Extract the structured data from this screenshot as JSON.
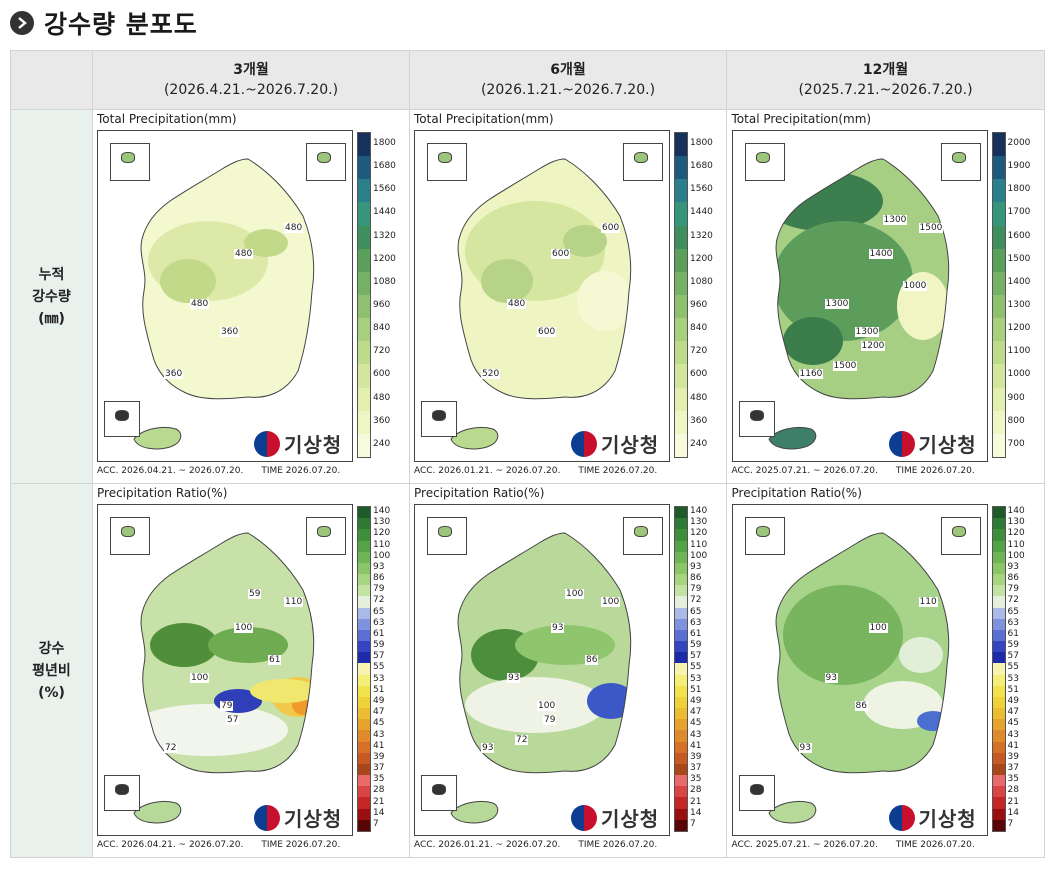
{
  "page": {
    "title": "강수량 분포도",
    "title_icon": "chevron-right-icon"
  },
  "columns": [
    {
      "label": "3개월",
      "range": "(2026.4.21.~2026.7.20.)"
    },
    {
      "label": "6개월",
      "range": "(2026.1.21.~2026.7.20.)"
    },
    {
      "label": "12개월",
      "range": "(2025.7.21.~2026.7.20.)"
    }
  ],
  "rows": [
    {
      "label_lines": [
        "누적",
        "강수량",
        "(㎜)"
      ]
    },
    {
      "label_lines": [
        "강수",
        "평년비",
        "(%)"
      ]
    }
  ],
  "logo_text": "기상청",
  "accumulation": {
    "panel_title": "Total Precipitation(mm)",
    "panels": [
      {
        "scale": [
          "1800",
          "1680",
          "1560",
          "1440",
          "1320",
          "1200",
          "1080",
          "960",
          "840",
          "720",
          "600",
          "480",
          "360",
          "240"
        ],
        "labels": [
          "480",
          "480",
          "480",
          "360",
          "360"
        ],
        "acc": "ACC. 2026.04.21. ~ 2026.07.20.",
        "time": "TIME 2026.07.20."
      },
      {
        "scale": [
          "1800",
          "1680",
          "1560",
          "1440",
          "1320",
          "1200",
          "1080",
          "960",
          "840",
          "720",
          "600",
          "480",
          "360",
          "240"
        ],
        "labels": [
          "600",
          "600",
          "480",
          "600",
          "520"
        ],
        "acc": "ACC. 2026.01.21. ~ 2026.07.20.",
        "time": "TIME 2026.07.20."
      },
      {
        "scale": [
          "2000",
          "1900",
          "1800",
          "1700",
          "1600",
          "1500",
          "1400",
          "1300",
          "1200",
          "1100",
          "1000",
          "900",
          "800",
          "700"
        ],
        "labels": [
          "1500",
          "1400",
          "1300",
          "1300",
          "1160",
          "1000",
          "1300",
          "1200",
          "1500"
        ],
        "acc": "ACC. 2025.07.21. ~ 2026.07.20.",
        "time": "TIME 2026.07.20."
      }
    ],
    "scale_colors": [
      "#16325c",
      "#1e5a7e",
      "#2a7f8a",
      "#36967b",
      "#3f8f5e",
      "#5a9f5a",
      "#74b065",
      "#8fc070",
      "#a8cf7d",
      "#bedb8c",
      "#d2e69d",
      "#e2efae",
      "#eef6c4",
      "#f7fadb"
    ]
  },
  "ratio": {
    "panel_title": "Precipitation Ratio(%)",
    "scale": [
      "140",
      "130",
      "120",
      "110",
      "100",
      "93",
      "86",
      "79",
      "72",
      "65",
      "63",
      "61",
      "59",
      "57",
      "55",
      "53",
      "51",
      "49",
      "47",
      "45",
      "43",
      "41",
      "39",
      "37",
      "35",
      "28",
      "21",
      "14",
      "7"
    ],
    "scale_colors": [
      "#1f5a2a",
      "#2e7a34",
      "#3e8f3c",
      "#55a347",
      "#6fb556",
      "#8ac668",
      "#a6d480",
      "#c4e2a4",
      "#e4f0dc",
      "#a9b9e8",
      "#7f92dd",
      "#5a6fd1",
      "#3545c1",
      "#1c2ba8",
      "#f6f4b0",
      "#f5ef7a",
      "#f2e24e",
      "#efd13a",
      "#ecbd33",
      "#e6a42f",
      "#df8a2b",
      "#d66f27",
      "#c75a22",
      "#a8481a",
      "#e86a6a",
      "#d94545",
      "#c42626",
      "#9a1010",
      "#5a0505"
    ],
    "panels": [
      {
        "labels": [
          "110",
          "100",
          "100",
          "79",
          "72",
          "61",
          "59",
          "57"
        ],
        "acc": "ACC. 2026.04.21. ~ 2026.07.20.",
        "time": "TIME 2026.07.20."
      },
      {
        "labels": [
          "100",
          "93",
          "93",
          "100",
          "93",
          "86",
          "100",
          "79",
          "72"
        ],
        "acc": "ACC. 2026.01.21. ~ 2026.07.20.",
        "time": "TIME 2026.07.20."
      },
      {
        "labels": [
          "110",
          "100",
          "93",
          "86",
          "93"
        ],
        "acc": "ACC. 2025.07.21. ~ 2026.07.20.",
        "time": "TIME 2026.07.20."
      }
    ]
  }
}
